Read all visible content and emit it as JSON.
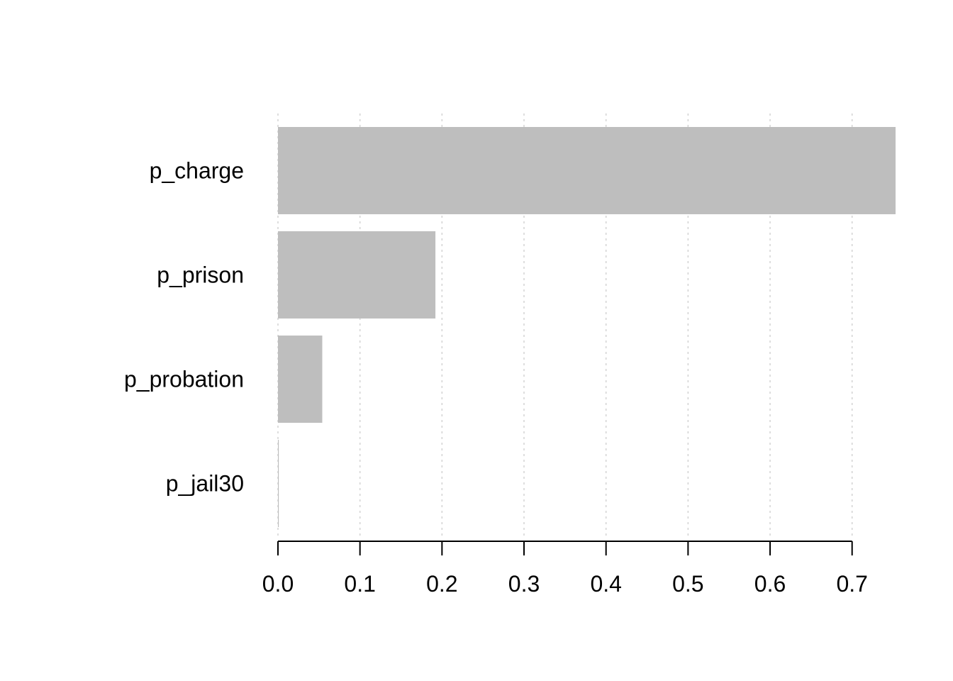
{
  "chart_data": {
    "type": "bar",
    "orientation": "horizontal",
    "categories": [
      "p_charge",
      "p_prison",
      "p_probation",
      "p_jail30"
    ],
    "values": [
      0.753,
      0.192,
      0.054,
      0.001
    ],
    "xlim": [
      0,
      0.753
    ],
    "xticks": [
      "0.0",
      "0.1",
      "0.2",
      "0.3",
      "0.4",
      "0.5",
      "0.6",
      "0.7"
    ],
    "bar_color": "#bebebe",
    "grid": "vertical dotted",
    "title": "",
    "xlabel": "",
    "ylabel": ""
  }
}
